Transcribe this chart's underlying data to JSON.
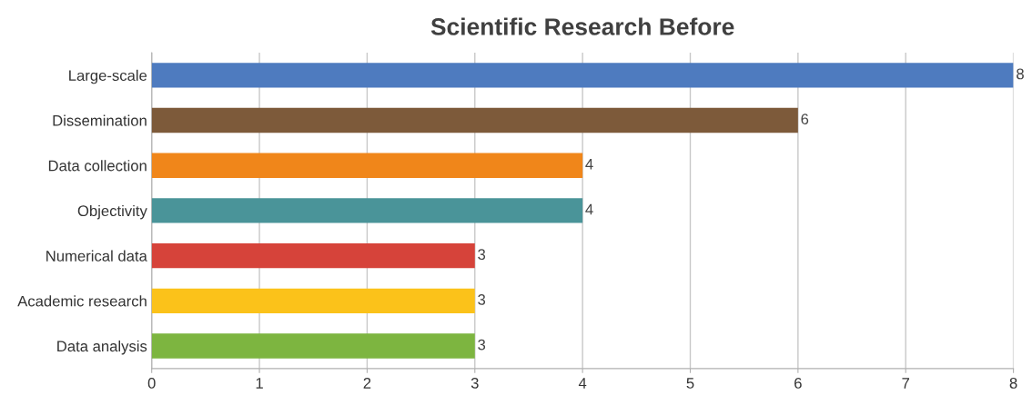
{
  "chart_data": {
    "type": "bar",
    "orientation": "horizontal",
    "title": "Scientific Research Before",
    "categories": [
      "Large-scale",
      "Dissemination",
      "Data collection",
      "Objectivity",
      "Numerical data",
      "Academic research",
      "Data analysis"
    ],
    "values": [
      8,
      6,
      4,
      4,
      3,
      3,
      3
    ],
    "colors": [
      "#4e7bbf",
      "#7d5a3a",
      "#f0861a",
      "#4a9499",
      "#d6433a",
      "#fbc21a",
      "#7db540"
    ],
    "xlim": [
      0,
      8
    ],
    "xticks": [
      0,
      1,
      2,
      3,
      4,
      5,
      6,
      7,
      8
    ],
    "grid": "x",
    "data_labels": true,
    "legend": false
  }
}
